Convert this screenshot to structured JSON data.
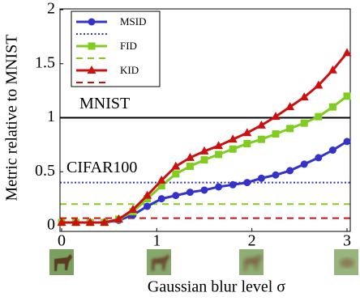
{
  "chart_data": {
    "type": "line",
    "ylabel": "Metric relative to MNIST",
    "xlabel": "Gaussian blur level σ",
    "xlim": [
      0,
      3
    ],
    "ylim": [
      0,
      2
    ],
    "xticks": [
      0,
      1,
      2,
      3
    ],
    "yticks": [
      0,
      0.5,
      1,
      1.5,
      2
    ],
    "x": [
      0,
      0.15,
      0.3,
      0.45,
      0.6,
      0.75,
      0.9,
      1.05,
      1.2,
      1.35,
      1.5,
      1.65,
      1.8,
      1.95,
      2.1,
      2.25,
      2.4,
      2.55,
      2.7,
      2.85,
      3
    ],
    "baseline": {
      "value": 1,
      "label": "MNIST",
      "color": "#000000"
    },
    "series": [
      {
        "name": "MSID",
        "color": "#3333cc",
        "marker": "circle",
        "values": [
          0.03,
          0.03,
          0.03,
          0.03,
          0.05,
          0.1,
          0.18,
          0.25,
          0.28,
          0.31,
          0.33,
          0.36,
          0.38,
          0.4,
          0.44,
          0.47,
          0.51,
          0.57,
          0.63,
          0.7,
          0.78
        ],
        "reference": {
          "value": 0.4,
          "style": "dotted",
          "label": "CIFAR100"
        }
      },
      {
        "name": "FID",
        "color": "#80cc20",
        "marker": "square",
        "values": [
          0.03,
          0.03,
          0.03,
          0.03,
          0.06,
          0.13,
          0.25,
          0.37,
          0.48,
          0.55,
          0.61,
          0.66,
          0.71,
          0.76,
          0.8,
          0.85,
          0.9,
          0.95,
          1.01,
          1.1,
          1.2
        ],
        "reference": {
          "value": 0.2,
          "style": "dashed"
        }
      },
      {
        "name": "KID",
        "color": "#cc1010",
        "marker": "triangle",
        "values": [
          0.03,
          0.03,
          0.03,
          0.03,
          0.06,
          0.15,
          0.28,
          0.42,
          0.55,
          0.63,
          0.69,
          0.74,
          0.8,
          0.86,
          0.93,
          1.01,
          1.1,
          1.19,
          1.3,
          1.44,
          1.6
        ],
        "reference": {
          "value": 0.07,
          "style": "dashed"
        }
      }
    ]
  }
}
